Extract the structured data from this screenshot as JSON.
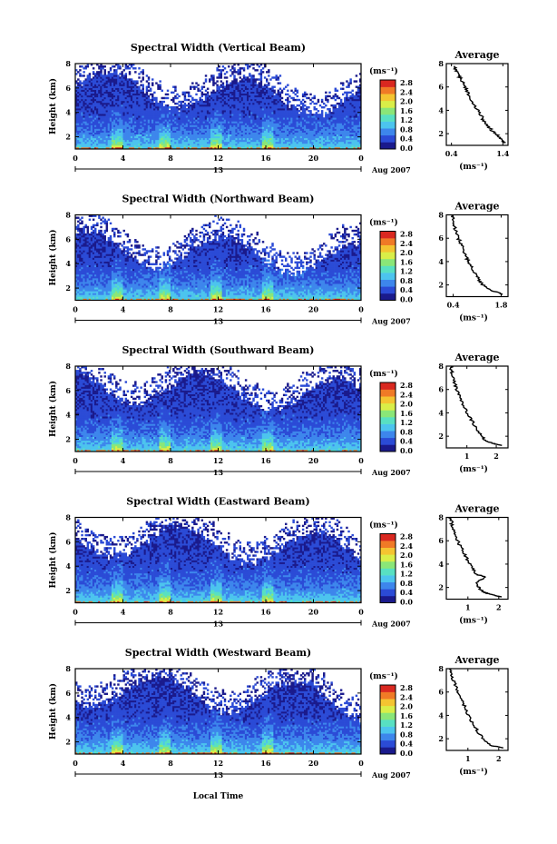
{
  "chart_data": [
    {
      "type": "heatmap",
      "title": "Spectral Width (Vertical Beam)",
      "ylabel": "Height (km)",
      "x_ticks": [
        "0",
        "4",
        "8",
        "12",
        "16",
        "20",
        "0"
      ],
      "y_ticks": [
        "2",
        "4",
        "6",
        "8"
      ],
      "xlim": [
        0,
        24
      ],
      "ylim": [
        1,
        8
      ],
      "date_label": "13",
      "date_suffix": "Aug 2007",
      "colorbar": {
        "unit": "(ms⁻¹)",
        "labels": [
          "2.8",
          "2.4",
          "2.0",
          "1.6",
          "1.2",
          "0.8",
          "0.4",
          "0.0"
        ],
        "range": [
          0.0,
          2.8
        ]
      },
      "profile": {
        "title": "Average",
        "xlabel": "(ms⁻¹)",
        "x_ticks": [
          "0.4",
          "1.4"
        ],
        "xlim": [
          0.3,
          1.5
        ],
        "y_ticks": [
          "2",
          "4",
          "6",
          "8"
        ],
        "ylim": [
          1,
          8
        ],
        "points": [
          [
            1.45,
            1.2
          ],
          [
            1.38,
            1.4
          ],
          [
            1.32,
            1.8
          ],
          [
            1.2,
            2.2
          ],
          [
            1.12,
            2.6
          ],
          [
            1.03,
            3.1
          ],
          [
            0.98,
            3.5
          ],
          [
            0.9,
            4.1
          ],
          [
            0.82,
            4.6
          ],
          [
            0.76,
            5.2
          ],
          [
            0.7,
            5.7
          ],
          [
            0.64,
            6.2
          ],
          [
            0.58,
            6.7
          ],
          [
            0.52,
            7.1
          ],
          [
            0.47,
            7.5
          ],
          [
            0.45,
            7.8
          ]
        ]
      },
      "wind_cap_km": 6.1
    },
    {
      "type": "heatmap",
      "title": "Spectral Width (Northward Beam)",
      "ylabel": "Height (km)",
      "x_ticks": [
        "0",
        "4",
        "8",
        "12",
        "16",
        "20",
        "0"
      ],
      "y_ticks": [
        "2",
        "4",
        "6",
        "8"
      ],
      "xlim": [
        0,
        24
      ],
      "ylim": [
        1,
        8
      ],
      "date_label": "13",
      "date_suffix": "Aug 2007",
      "colorbar": {
        "unit": "(ms⁻¹)",
        "labels": [
          "2.8",
          "2.4",
          "2.0",
          "1.6",
          "1.2",
          "0.8",
          "0.4",
          "0.0"
        ],
        "range": [
          0.0,
          2.8
        ]
      },
      "profile": {
        "title": "Average",
        "xlabel": "(ms⁻¹)",
        "x_ticks": [
          "0.4",
          "1.8"
        ],
        "xlim": [
          0.2,
          2.0
        ],
        "y_ticks": [
          "2",
          "4",
          "6",
          "8"
        ],
        "ylim": [
          1,
          8
        ],
        "points": [
          [
            1.85,
            1.2
          ],
          [
            1.55,
            1.5
          ],
          [
            1.3,
            1.9
          ],
          [
            1.18,
            2.3
          ],
          [
            1.08,
            2.8
          ],
          [
            0.98,
            3.3
          ],
          [
            0.88,
            3.8
          ],
          [
            0.8,
            4.3
          ],
          [
            0.72,
            4.9
          ],
          [
            0.62,
            5.5
          ],
          [
            0.55,
            6.0
          ],
          [
            0.47,
            6.6
          ],
          [
            0.42,
            7.2
          ],
          [
            0.38,
            7.7
          ],
          [
            0.36,
            8.0
          ]
        ]
      },
      "wind_cap_km": 5.4
    },
    {
      "type": "heatmap",
      "title": "Spectral Width (Southward Beam)",
      "ylabel": "Height (km)",
      "x_ticks": [
        "0",
        "4",
        "8",
        "12",
        "16",
        "20",
        "0"
      ],
      "y_ticks": [
        "2",
        "4",
        "6",
        "8"
      ],
      "xlim": [
        0,
        24
      ],
      "ylim": [
        1,
        8
      ],
      "date_label": "13",
      "date_suffix": "Aug 2007",
      "colorbar": {
        "unit": "(ms⁻¹)",
        "labels": [
          "2.8",
          "2.4",
          "2.0",
          "1.6",
          "1.2",
          "0.8",
          "0.4",
          "0.0"
        ],
        "range": [
          0.0,
          2.8
        ]
      },
      "profile": {
        "title": "Average",
        "xlabel": "(ms⁻¹)",
        "x_ticks": [
          "1",
          "2"
        ],
        "xlim": [
          0.3,
          2.4
        ],
        "y_ticks": [
          "2",
          "4",
          "6",
          "8"
        ],
        "ylim": [
          1,
          8
        ],
        "points": [
          [
            2.2,
            1.2
          ],
          [
            1.85,
            1.4
          ],
          [
            1.6,
            1.7
          ],
          [
            1.45,
            2.2
          ],
          [
            1.3,
            2.8
          ],
          [
            1.15,
            3.4
          ],
          [
            1.02,
            4.0
          ],
          [
            0.9,
            4.6
          ],
          [
            0.78,
            5.3
          ],
          [
            0.66,
            5.9
          ],
          [
            0.58,
            6.5
          ],
          [
            0.52,
            7.1
          ],
          [
            0.48,
            7.6
          ],
          [
            0.45,
            8.0
          ]
        ]
      },
      "wind_cap_km": 6.6
    },
    {
      "type": "heatmap",
      "title": "Spectral Width (Eastward Beam)",
      "ylabel": "Height (km)",
      "x_ticks": [
        "0",
        "4",
        "8",
        "12",
        "16",
        "20",
        "0"
      ],
      "y_ticks": [
        "2",
        "4",
        "6",
        "8"
      ],
      "xlim": [
        0,
        24
      ],
      "ylim": [
        1,
        8
      ],
      "date_label": "13",
      "date_suffix": "Aug 2007",
      "colorbar": {
        "unit": "(ms⁻¹)",
        "labels": [
          "2.8",
          "2.4",
          "2.0",
          "1.6",
          "1.2",
          "0.8",
          "0.4",
          "0.0"
        ],
        "range": [
          0.0,
          2.8
        ]
      },
      "profile": {
        "title": "Average",
        "xlabel": "(ms⁻¹)",
        "x_ticks": [
          "1",
          "2"
        ],
        "xlim": [
          0.3,
          2.3
        ],
        "y_ticks": [
          "2",
          "4",
          "6",
          "8"
        ],
        "ylim": [
          1,
          8
        ],
        "points": [
          [
            2.1,
            1.2
          ],
          [
            1.75,
            1.4
          ],
          [
            1.5,
            1.6
          ],
          [
            1.35,
            2.0
          ],
          [
            1.25,
            2.4
          ],
          [
            1.6,
            2.9
          ],
          [
            1.3,
            3.1
          ],
          [
            1.15,
            3.6
          ],
          [
            1.02,
            4.2
          ],
          [
            0.9,
            4.8
          ],
          [
            0.78,
            5.4
          ],
          [
            0.66,
            6.0
          ],
          [
            0.56,
            6.6
          ],
          [
            0.5,
            7.2
          ],
          [
            0.46,
            7.7
          ],
          [
            0.44,
            8.0
          ]
        ]
      },
      "wind_cap_km": 6.3
    },
    {
      "type": "heatmap",
      "title": "Spectral Width (Westward Beam)",
      "ylabel": "Height (km)",
      "x_ticks": [
        "0",
        "4",
        "8",
        "12",
        "16",
        "20",
        "0"
      ],
      "y_ticks": [
        "2",
        "4",
        "6",
        "8"
      ],
      "xlim": [
        0,
        24
      ],
      "ylim": [
        1,
        8
      ],
      "date_label": "13",
      "date_suffix": "Aug 2007",
      "colorbar": {
        "unit": "(ms⁻¹)",
        "labels": [
          "2.8",
          "2.4",
          "2.0",
          "1.6",
          "1.2",
          "0.8",
          "0.4",
          "0.0"
        ],
        "range": [
          0.0,
          2.8
        ]
      },
      "profile": {
        "title": "Average",
        "xlabel": "(ms⁻¹)",
        "x_ticks": [
          "1",
          "2"
        ],
        "xlim": [
          0.3,
          2.3
        ],
        "y_ticks": [
          "2",
          "4",
          "6",
          "8"
        ],
        "ylim": [
          1,
          8
        ],
        "points": [
          [
            2.15,
            1.2
          ],
          [
            1.8,
            1.4
          ],
          [
            1.55,
            1.8
          ],
          [
            1.4,
            2.3
          ],
          [
            1.25,
            2.9
          ],
          [
            1.12,
            3.5
          ],
          [
            1.0,
            4.1
          ],
          [
            0.9,
            4.7
          ],
          [
            0.8,
            5.3
          ],
          [
            0.7,
            5.9
          ],
          [
            0.6,
            6.5
          ],
          [
            0.52,
            7.1
          ],
          [
            0.48,
            7.6
          ],
          [
            0.46,
            8.0
          ]
        ]
      },
      "wind_cap_km": 6.4
    }
  ],
  "x_axis_label": "Local Time",
  "colormap": [
    "#1a1a8c",
    "#2b4bd6",
    "#3d86ec",
    "#4cc4ee",
    "#58e0c2",
    "#8ae678",
    "#d9ee48",
    "#f4c431",
    "#f07a26",
    "#d92820"
  ]
}
